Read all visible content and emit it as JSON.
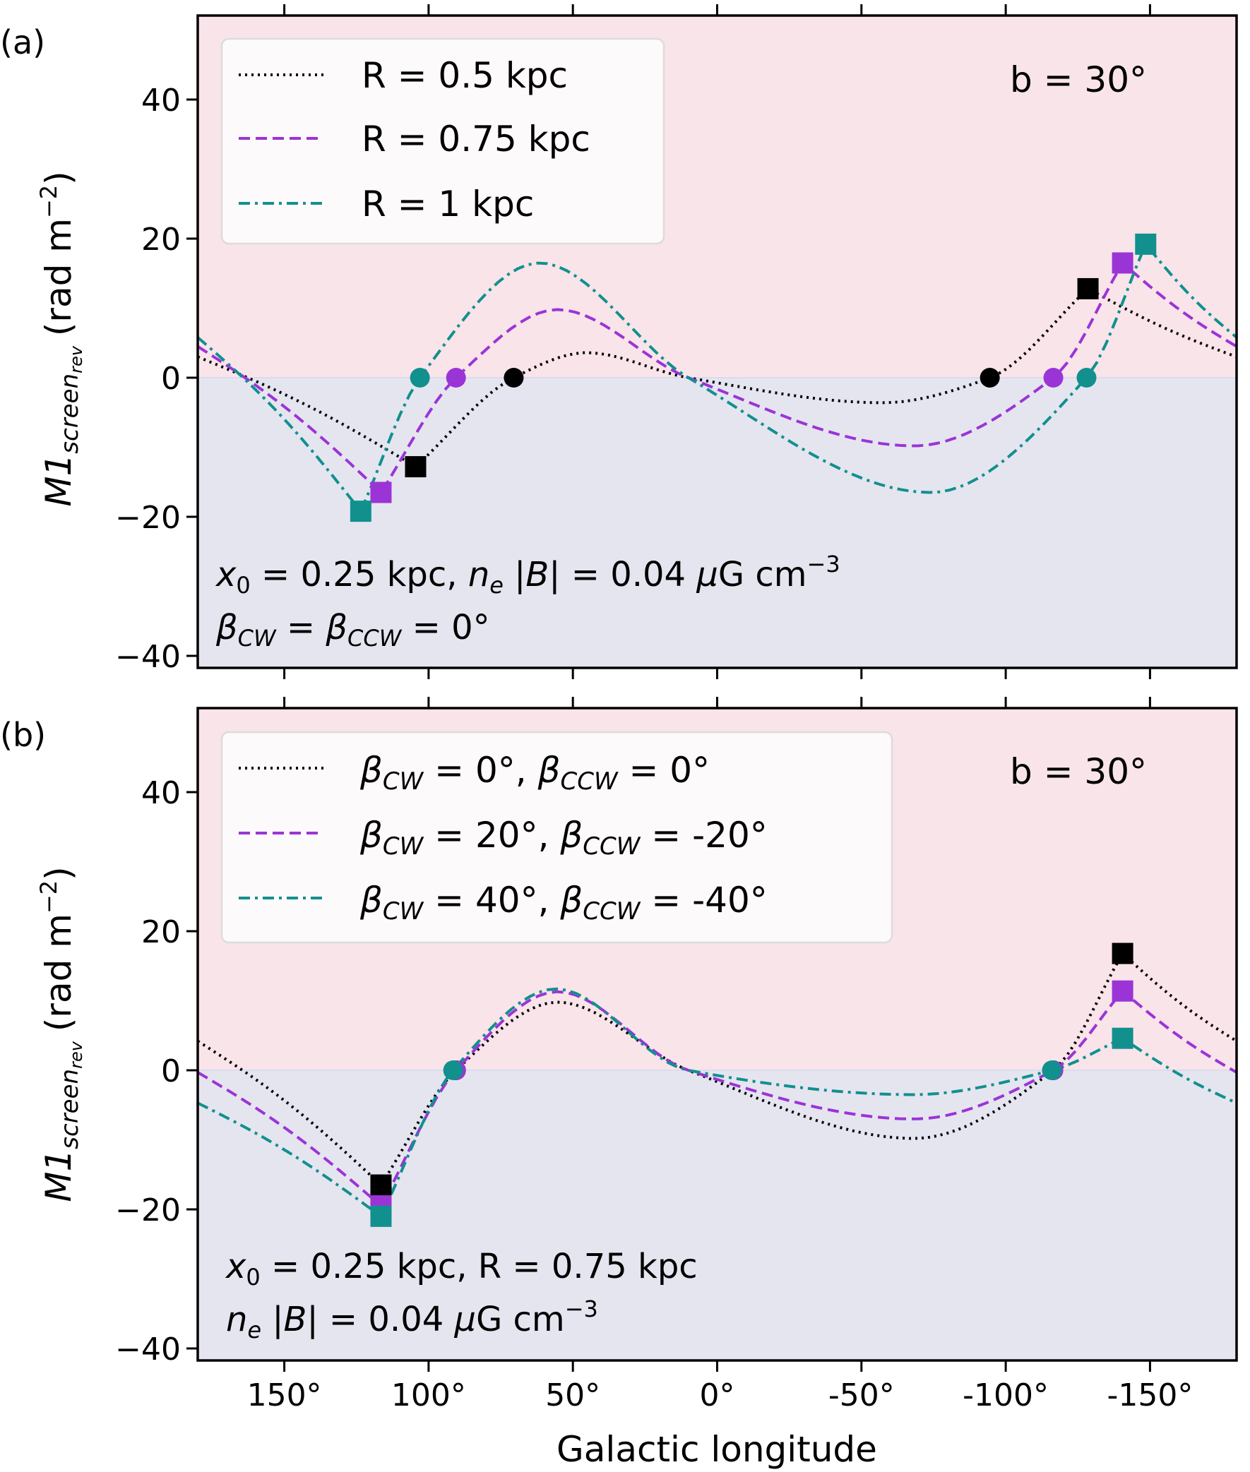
{
  "colors": {
    "positive_region": "#f9e4e9",
    "negative_region": "#e5e5f0",
    "zero_line": "#d9dcee",
    "black": "#000000",
    "purple": "#9b34d6",
    "teal": "#11908e",
    "legend_bg": "#fdfafb",
    "legend_border": "#dcdcdc"
  },
  "figure": {
    "xlabel": "Galactic longitude",
    "ylabel_main": "M1",
    "ylabel_sub": "screen",
    "ylabel_subsub": "rev",
    "ylabel_unit": "(rad m",
    "ylabel_exp": "−2",
    "ylabel_close": ")"
  },
  "chart_data": [
    {
      "type": "line",
      "panel_label": "(a)",
      "annotation": "b = 30°",
      "x_dir": "reversed",
      "xlim": [
        180,
        -180
      ],
      "ylim": [
        -42,
        53
      ],
      "xticks": [
        150,
        100,
        50,
        0,
        -50,
        -100,
        -150
      ],
      "yticks": [
        40,
        20,
        0,
        -20,
        -40
      ],
      "ytick_labels": [
        "40",
        "20",
        "0",
        "−20",
        "−40"
      ],
      "xtick_labels": [
        "150°",
        "100°",
        "50°",
        "0°",
        "-50°",
        "-100°",
        "-150°"
      ],
      "shading": "y>0 pink, y<0 lavender",
      "note_line1": {
        "x0": "x",
        "x0_sub": "0",
        "mid": " = 0.25 kpc, ",
        "ne": "n",
        "ne_sub": "e",
        "absb": " |",
        "B": "B",
        "rest": "| = 0.04 ",
        "mu": "μ",
        "unit": "G cm",
        "exp": "−3"
      },
      "note_line2": {
        "b1": "β",
        "b1_sub": "CW",
        "eq": " = ",
        "b2": "β",
        "b2_sub": "CCW",
        "rest": " = 0°"
      },
      "legend": [
        {
          "label": "R = 0.5 kpc",
          "style": "dotted",
          "color": "#000000"
        },
        {
          "label": "R = 0.75 kpc",
          "style": "dashed",
          "color": "#9b34d6"
        },
        {
          "label": "R = 1 kpc",
          "style": "dashdot",
          "color": "#11908e"
        }
      ],
      "series": [
        {
          "name": "R = 0.5 kpc",
          "color": "#000000",
          "style": "dotted",
          "square_lon": [
            104.5,
            -128.5
          ],
          "square_val": [
            -12.8,
            12.8
          ],
          "circle_lon": [
            70.5,
            -94.5
          ],
          "edge_val": 3.0,
          "hump_peak": 3.6,
          "trough_val": -3.6
        },
        {
          "name": "R = 0.75 kpc",
          "color": "#9b34d6",
          "style": "dashed",
          "square_lon": [
            116.5,
            -140.5
          ],
          "square_val": [
            -16.5,
            16.5
          ],
          "circle_lon": [
            90.5,
            -116.5
          ],
          "edge_val": 4.5,
          "hump_peak": 9.8,
          "trough_val": -9.8
        },
        {
          "name": "R = 1 kpc",
          "color": "#11908e",
          "style": "dashdot",
          "square_lon": [
            123.5,
            -148.5
          ],
          "square_val": [
            -19.2,
            19.2
          ],
          "circle_lon": [
            103.0,
            -128.0
          ],
          "edge_val": 5.8,
          "hump_peak": 16.5,
          "trough_val": -16.5
        }
      ]
    },
    {
      "type": "line",
      "panel_label": "(b)",
      "annotation": "b = 30°",
      "x_dir": "reversed",
      "xlim": [
        180,
        -180
      ],
      "ylim": [
        -42,
        53
      ],
      "xticks": [
        150,
        100,
        50,
        0,
        -50,
        -100,
        -150
      ],
      "yticks": [
        40,
        20,
        0,
        -20,
        -40
      ],
      "ytick_labels": [
        "40",
        "20",
        "0",
        "−20",
        "−40"
      ],
      "xtick_labels": [
        "150°",
        "100°",
        "50°",
        "0°",
        "-50°",
        "-100°",
        "-150°"
      ],
      "shading": "y>0 pink, y<0 lavender",
      "note_line1": {
        "x0": "x",
        "x0_sub": "0",
        "rest": " = 0.25 kpc, R = 0.75 kpc"
      },
      "note_line2": {
        "ne": "n",
        "ne_sub": "e",
        "absb": " |",
        "B": "B",
        "rest": "| = 0.04 ",
        "mu": "μ",
        "unit": "G cm",
        "exp": "−3"
      },
      "legend": [
        {
          "b1": "β",
          "s1": "CW",
          "m1": " = 0°, ",
          "b2": "β",
          "s2": "CCW",
          "m2": " = 0°",
          "style": "dotted",
          "color": "#000000"
        },
        {
          "b1": "β",
          "s1": "CW",
          "m1": " = 20°, ",
          "b2": "β",
          "s2": "CCW",
          "m2": " = -20°",
          "style": "dashed",
          "color": "#9b34d6"
        },
        {
          "b1": "β",
          "s1": "CW",
          "m1": " = 40°, ",
          "b2": "β",
          "s2": "CCW",
          "m2": " = -40°",
          "style": "dashdot",
          "color": "#11908e"
        }
      ],
      "series": [
        {
          "name": "βCW = 0°, βCCW = 0°",
          "color": "#000000",
          "style": "dotted",
          "square_lon": [
            116.5,
            -140.5
          ],
          "square_val": [
            -16.5,
            16.8
          ],
          "circle_lon": [
            90.5,
            -116.5
          ],
          "edge_left": 4.2,
          "edge_right": 4.2,
          "hump_peak": 9.8,
          "trough_val": -9.8
        },
        {
          "name": "βCW = 20°, βCCW = -20°",
          "color": "#9b34d6",
          "style": "dashed",
          "square_lon": [
            116.5,
            -140.5
          ],
          "square_val": [
            -19.5,
            11.4
          ],
          "circle_lon": [
            90.5,
            -116.5
          ],
          "edge_left": -0.3,
          "edge_right": -0.3,
          "hump_peak": 11.3,
          "trough_val": -7.0
        },
        {
          "name": "βCW = 40°, βCCW = -40°",
          "color": "#11908e",
          "style": "dashdot",
          "square_lon": [
            116.5,
            -140.5
          ],
          "square_val": [
            -21.0,
            4.6
          ],
          "circle_lon": [
            91.5,
            -116.0
          ],
          "edge_left": -4.7,
          "edge_right": -4.7,
          "hump_peak": 11.7,
          "trough_val": -3.5
        }
      ]
    }
  ]
}
